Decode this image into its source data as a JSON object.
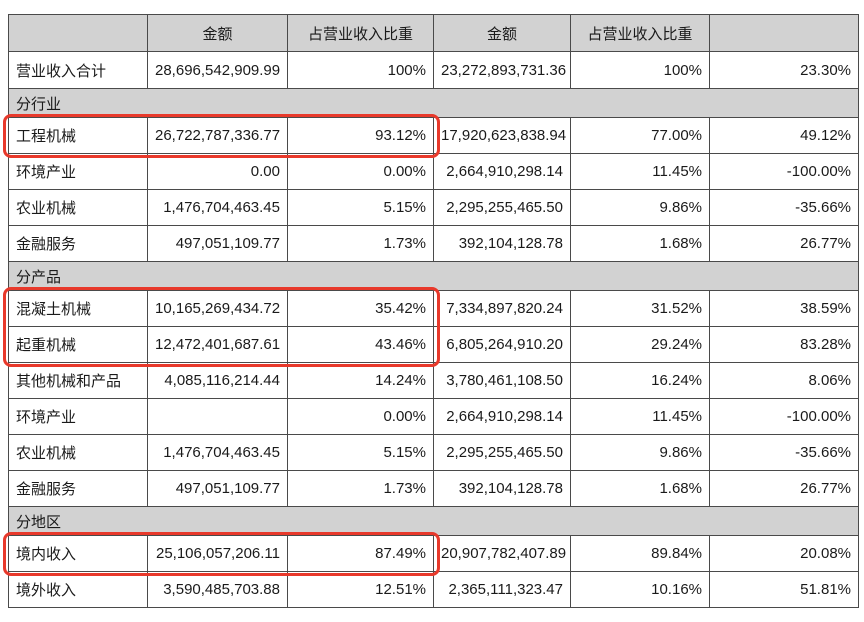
{
  "colors": {
    "header_bg": "#d2d2d2",
    "section_bg": "#d2d2d2",
    "shaded_cell_bg": "#d2d2d2",
    "total_label_bg": "#e2e2e2",
    "border": "#4a4a4a",
    "text": "#1a1a1a",
    "highlight_red": "#e8392b"
  },
  "table": {
    "headers": [
      "",
      "金额",
      "占营业收入比重",
      "金额",
      "占营业收入比重",
      ""
    ],
    "rows": [
      {
        "kind": "data",
        "variant": "total",
        "cells": [
          "营业收入合计",
          "28,696,542,909.99",
          "100%",
          "23,272,893,731.36",
          "100%",
          "23.30%"
        ],
        "shade": [
          2,
          0,
          1,
          0,
          1,
          0
        ]
      },
      {
        "kind": "section",
        "label": "分行业"
      },
      {
        "kind": "data",
        "cells": [
          "工程机械",
          "26,722,787,336.77",
          "93.12%",
          "17,920,623,838.94",
          "77.00%",
          "49.12%"
        ]
      },
      {
        "kind": "data",
        "cells": [
          "环境产业",
          "0.00",
          "0.00%",
          "2,664,910,298.14",
          "11.45%",
          "-100.00%"
        ]
      },
      {
        "kind": "data",
        "cells": [
          "农业机械",
          "1,476,704,463.45",
          "5.15%",
          "2,295,255,465.50",
          "9.86%",
          "-35.66%"
        ]
      },
      {
        "kind": "data",
        "cells": [
          "金融服务",
          "497,051,109.77",
          "1.73%",
          "392,104,128.78",
          "1.68%",
          "26.77%"
        ]
      },
      {
        "kind": "section",
        "label": "分产品"
      },
      {
        "kind": "data",
        "cells": [
          "混凝土机械",
          "10,165,269,434.72",
          "35.42%",
          "7,334,897,820.24",
          "31.52%",
          "38.59%"
        ]
      },
      {
        "kind": "data",
        "cells": [
          "起重机械",
          "12,472,401,687.61",
          "43.46%",
          "6,805,264,910.20",
          "29.24%",
          "83.28%"
        ]
      },
      {
        "kind": "data",
        "cells": [
          "其他机械和产品",
          "4,085,116,214.44",
          "14.24%",
          "3,780,461,108.50",
          "16.24%",
          "8.06%"
        ]
      },
      {
        "kind": "data",
        "cells": [
          "环境产业",
          "",
          "0.00%",
          "2,664,910,298.14",
          "11.45%",
          "-100.00%"
        ]
      },
      {
        "kind": "data",
        "cells": [
          "农业机械",
          "1,476,704,463.45",
          "5.15%",
          "2,295,255,465.50",
          "9.86%",
          "-35.66%"
        ]
      },
      {
        "kind": "data",
        "cells": [
          "金融服务",
          "497,051,109.77",
          "1.73%",
          "392,104,128.78",
          "1.68%",
          "26.77%"
        ]
      },
      {
        "kind": "section",
        "label": "分地区"
      },
      {
        "kind": "data",
        "cells": [
          "境内收入",
          "25,106,057,206.11",
          "87.49%",
          "20,907,782,407.89",
          "89.84%",
          "20.08%"
        ]
      },
      {
        "kind": "data",
        "cells": [
          "境外收入",
          "3,590,485,703.88",
          "12.51%",
          "2,365,111,323.47",
          "10.16%",
          "51.81%"
        ]
      }
    ],
    "annotations": [
      {
        "type": "highlight-box",
        "row_start": 2,
        "row_end": 2,
        "col_start": 0,
        "col_end": 2
      },
      {
        "type": "highlight-box",
        "row_start": 7,
        "row_end": 8,
        "col_start": 0,
        "col_end": 2
      },
      {
        "type": "highlight-box",
        "row_start": 14,
        "row_end": 14,
        "col_start": 0,
        "col_end": 2
      }
    ]
  }
}
